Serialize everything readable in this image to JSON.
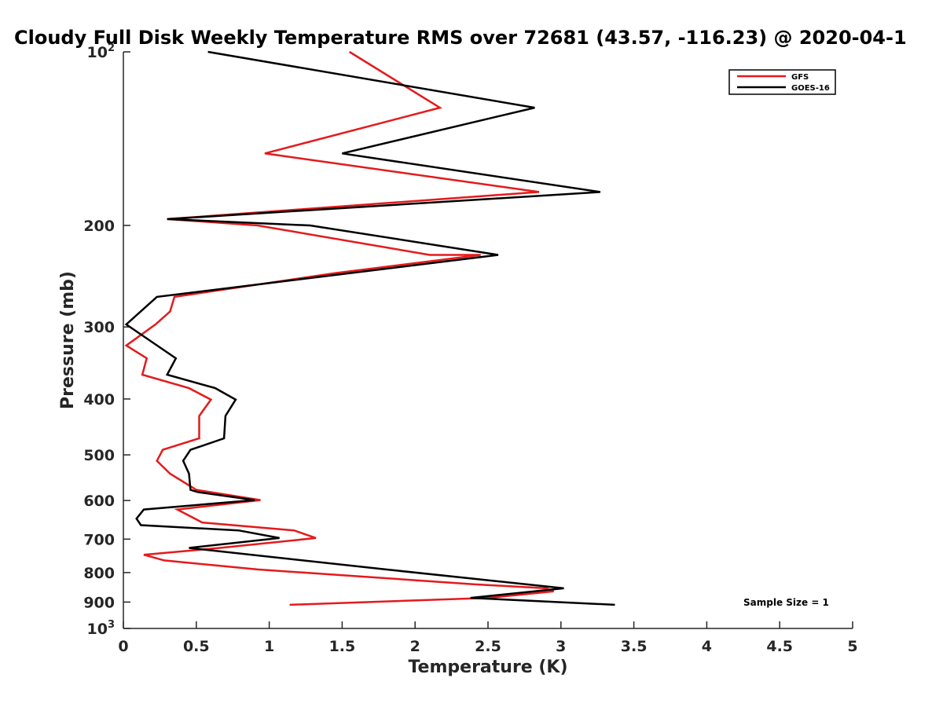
{
  "chart_data": {
    "type": "line",
    "title": "Cloudy Full Disk Weekly Temperature RMS over 72681 (43.57, -116.23) @ 2020-04-1",
    "xlabel": "Temperature (K)",
    "ylabel": "Pressure (mb)",
    "xlim": [
      0,
      5
    ],
    "ylim": [
      100,
      1000
    ],
    "y_scale": "log",
    "y_reversed": true,
    "x_ticks": [
      "0",
      "0.5",
      "1",
      "1.5",
      "2",
      "2.5",
      "3",
      "3.5",
      "4",
      "4.5",
      "5"
    ],
    "x_tick_values": [
      0,
      0.5,
      1,
      1.5,
      2,
      2.5,
      3,
      3.5,
      4,
      4.5,
      5
    ],
    "y_ticks": [
      {
        "value": 100,
        "base": "10",
        "exp": "2",
        "label": ""
      },
      {
        "value": 200,
        "base": "",
        "exp": "",
        "label": "200"
      },
      {
        "value": 300,
        "base": "",
        "exp": "",
        "label": "300"
      },
      {
        "value": 400,
        "base": "",
        "exp": "",
        "label": "400"
      },
      {
        "value": 500,
        "base": "",
        "exp": "",
        "label": "500"
      },
      {
        "value": 600,
        "base": "",
        "exp": "",
        "label": "600"
      },
      {
        "value": 700,
        "base": "",
        "exp": "",
        "label": "700"
      },
      {
        "value": 800,
        "base": "",
        "exp": "",
        "label": "800"
      },
      {
        "value": 900,
        "base": "",
        "exp": "",
        "label": "900"
      },
      {
        "value": 1000,
        "base": "10",
        "exp": "3",
        "label": ""
      }
    ],
    "grid": false,
    "legend_position": "top-right",
    "series": [
      {
        "name": "GFS",
        "color": "#e41a1c",
        "points": [
          [
            1.55,
            100
          ],
          [
            2.17,
            125
          ],
          [
            0.97,
            150
          ],
          [
            2.85,
            175
          ],
          [
            0.3,
            195
          ],
          [
            0.92,
            200
          ],
          [
            2.1,
            225
          ],
          [
            2.45,
            225
          ],
          [
            1.45,
            242
          ],
          [
            0.35,
            266
          ],
          [
            0.32,
            282
          ],
          [
            0.22,
            297
          ],
          [
            0.02,
            323
          ],
          [
            0.16,
            340
          ],
          [
            0.13,
            363
          ],
          [
            0.45,
            383
          ],
          [
            0.6,
            401
          ],
          [
            0.52,
            428
          ],
          [
            0.52,
            468
          ],
          [
            0.27,
            490
          ],
          [
            0.23,
            512
          ],
          [
            0.32,
            539
          ],
          [
            0.5,
            575
          ],
          [
            0.94,
            599
          ],
          [
            0.37,
            622
          ],
          [
            0.54,
            655
          ],
          [
            1.17,
            676
          ],
          [
            1.32,
            697
          ],
          [
            0.66,
            725
          ],
          [
            0.14,
            745
          ],
          [
            0.28,
            762
          ],
          [
            0.92,
            790
          ],
          [
            2.4,
            838
          ],
          [
            2.9,
            852
          ],
          [
            2.95,
            862
          ],
          [
            2.5,
            885
          ],
          [
            1.14,
            910
          ]
        ]
      },
      {
        "name": "GOES-16",
        "color": "#000000",
        "points": [
          [
            0.58,
            100
          ],
          [
            2.82,
            125
          ],
          [
            1.5,
            150
          ],
          [
            3.27,
            175
          ],
          [
            0.3,
            195
          ],
          [
            1.28,
            200
          ],
          [
            2.57,
            225
          ],
          [
            0.23,
            266
          ],
          [
            0.02,
            297
          ],
          [
            0.36,
            340
          ],
          [
            0.3,
            363
          ],
          [
            0.63,
            383
          ],
          [
            0.77,
            401
          ],
          [
            0.7,
            428
          ],
          [
            0.69,
            468
          ],
          [
            0.46,
            490
          ],
          [
            0.41,
            512
          ],
          [
            0.45,
            539
          ],
          [
            0.46,
            575
          ],
          [
            0.51,
            580
          ],
          [
            0.9,
            599
          ],
          [
            0.14,
            622
          ],
          [
            0.09,
            645
          ],
          [
            0.12,
            662
          ],
          [
            0.79,
            676
          ],
          [
            1.07,
            697
          ],
          [
            0.45,
            725
          ],
          [
            1.8,
            790
          ],
          [
            3.02,
            852
          ],
          [
            2.38,
            885
          ],
          [
            3.37,
            910
          ]
        ]
      }
    ],
    "annotation": "Sample Size = 1"
  }
}
